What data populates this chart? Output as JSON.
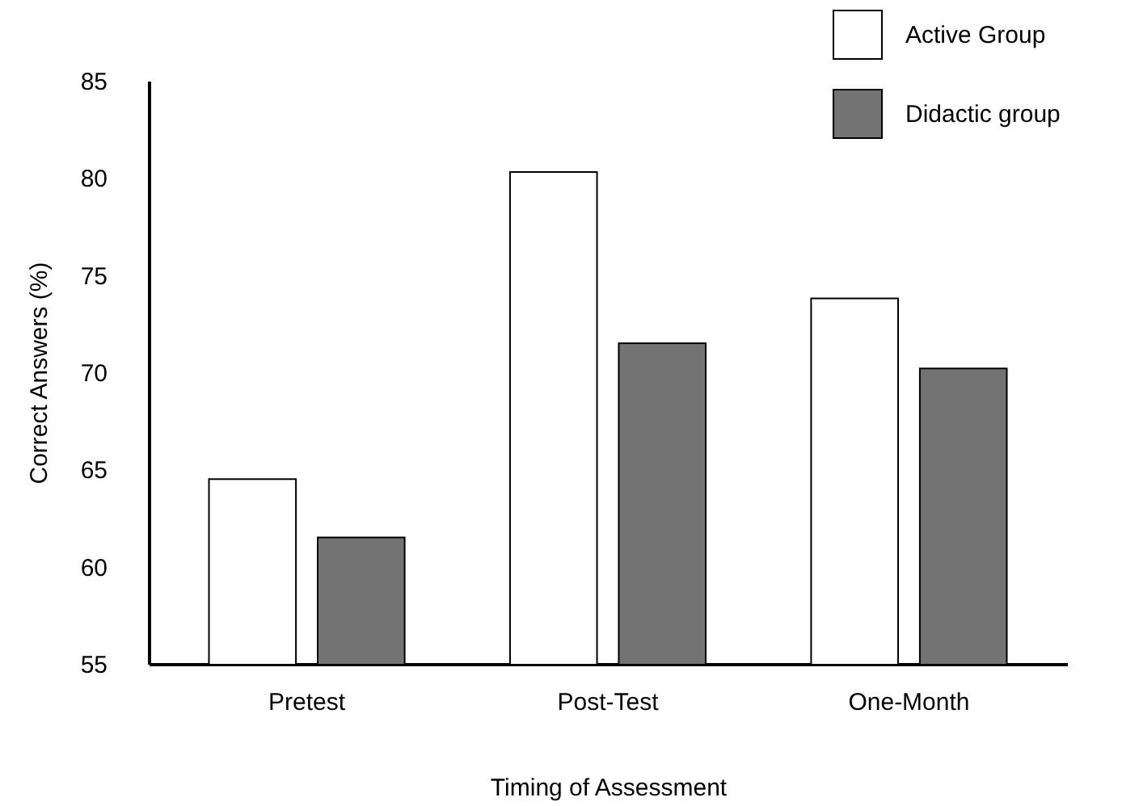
{
  "chart_data": {
    "type": "bar",
    "xlabel": "Timing of Assessment",
    "ylabel": "Correct Answers (%)",
    "categories": [
      "Pretest",
      "Post-Test",
      "One-Month"
    ],
    "series": [
      {
        "name": "Active Group",
        "color": "#ffffff",
        "values": [
          64.5,
          80.3,
          73.8
        ]
      },
      {
        "name": "Didactic group",
        "color": "#737373",
        "values": [
          61.5,
          71.5,
          70.2
        ]
      }
    ],
    "ylim": [
      55,
      85
    ],
    "yticks": [
      55,
      60,
      65,
      70,
      75,
      80,
      85
    ],
    "grid": false,
    "legend": "top right"
  }
}
